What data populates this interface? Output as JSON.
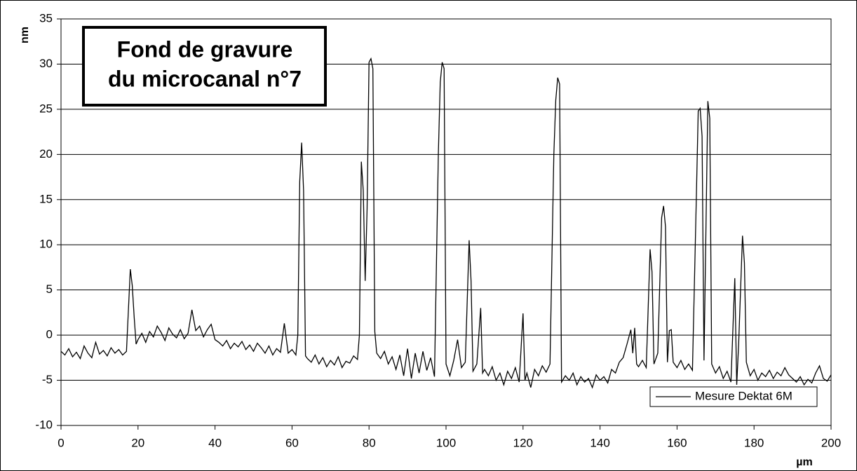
{
  "chart_data": {
    "type": "line",
    "title_lines": [
      "Fond de gravure",
      "du microcanal n°7"
    ],
    "x_label": "µm",
    "y_label": "nm",
    "xlim": [
      0,
      200
    ],
    "xticks": [
      0,
      20,
      40,
      60,
      80,
      100,
      120,
      140,
      160,
      180,
      200
    ],
    "ylim": [
      -10,
      35
    ],
    "yticks": [
      -10,
      -5,
      0,
      5,
      10,
      15,
      20,
      25,
      30,
      35
    ],
    "grid": true,
    "legend": "lower right",
    "x": [
      0,
      1,
      2,
      3,
      4,
      5,
      6,
      7,
      8,
      9,
      10,
      11,
      12,
      13,
      14,
      15,
      16,
      17,
      18,
      18.5,
      19,
      19.5,
      20,
      21,
      22,
      23,
      24,
      25,
      26,
      27,
      28,
      29,
      30,
      31,
      32,
      33,
      34,
      35,
      36,
      37,
      38,
      39,
      40,
      41,
      42,
      43,
      44,
      45,
      46,
      47,
      48,
      49,
      50,
      51,
      52,
      53,
      54,
      55,
      56,
      57,
      58,
      59,
      60,
      61,
      61.5,
      62,
      62.5,
      63,
      63.5,
      64,
      65,
      66,
      67,
      68,
      69,
      70,
      71,
      72,
      73,
      74,
      75,
      76,
      77,
      77.5,
      78,
      78.5,
      79,
      79.5,
      80,
      80.5,
      81,
      81.5,
      82,
      83,
      84,
      85,
      86,
      87,
      88,
      89,
      90,
      91,
      92,
      93,
      94,
      95,
      96,
      97,
      98,
      98.5,
      99,
      99.5,
      100,
      101,
      102,
      103,
      104,
      105,
      106,
      106.5,
      107,
      108,
      109,
      109.5,
      110,
      111,
      112,
      113,
      114,
      115,
      116,
      117,
      118,
      119,
      120,
      120.5,
      121,
      122,
      123,
      124,
      125,
      126,
      127,
      128,
      128.5,
      129,
      129.5,
      130,
      131,
      132,
      133,
      134,
      135,
      136,
      137,
      138,
      139,
      140,
      141,
      142,
      143,
      144,
      145,
      146,
      147,
      148,
      148.5,
      149,
      149.5,
      150,
      151,
      152,
      153,
      153.5,
      154,
      155,
      156,
      156.5,
      157,
      157.5,
      158,
      158.5,
      159,
      160,
      161,
      162,
      163,
      164,
      165,
      165.5,
      166,
      166.5,
      167,
      168,
      168.5,
      169,
      170,
      171,
      172,
      173,
      174,
      175,
      175.5,
      176,
      177,
      177.5,
      178,
      179,
      180,
      181,
      182,
      183,
      184,
      185,
      186,
      187,
      188,
      189,
      190,
      191,
      192,
      193,
      194,
      195,
      196,
      197,
      198,
      199,
      200
    ],
    "series": [
      {
        "name": "Mesure Dektat 6M",
        "color": "#000000",
        "values": [
          -1.8,
          -2.2,
          -1.5,
          -2.4,
          -1.9,
          -2.6,
          -1.2,
          -2.0,
          -2.5,
          -0.8,
          -2.1,
          -1.7,
          -2.3,
          -1.4,
          -2.0,
          -1.6,
          -2.2,
          -1.8,
          7.3,
          5.5,
          2.0,
          -1.0,
          -0.5,
          0.2,
          -0.8,
          0.4,
          -0.2,
          1.0,
          0.3,
          -0.6,
          0.8,
          0.1,
          -0.3,
          0.6,
          -0.4,
          0.2,
          2.8,
          0.5,
          1.0,
          -0.2,
          0.6,
          1.2,
          -0.5,
          -0.8,
          -1.2,
          -0.6,
          -1.5,
          -0.9,
          -1.3,
          -0.7,
          -1.6,
          -1.1,
          -1.8,
          -0.9,
          -1.4,
          -2.0,
          -1.2,
          -2.2,
          -1.5,
          -1.9,
          1.3,
          -2.0,
          -1.6,
          -2.2,
          0,
          17,
          21.3,
          16,
          -2.3,
          -2.6,
          -3.0,
          -2.2,
          -3.2,
          -2.5,
          -3.5,
          -2.8,
          -3.3,
          -2.4,
          -3.6,
          -2.9,
          -3.1,
          -2.3,
          -2.7,
          0,
          19.2,
          16,
          6,
          14,
          30.2,
          30.6,
          29.5,
          0.4,
          -2.0,
          -2.6,
          -1.8,
          -3.2,
          -2.4,
          -3.8,
          -2.2,
          -4.5,
          -1.5,
          -4.8,
          -2.0,
          -4.2,
          -1.8,
          -3.9,
          -2.5,
          -4.6,
          20,
          28,
          30.2,
          29.5,
          -3.2,
          -4.5,
          -2.8,
          -0.5,
          -3.6,
          -3.0,
          10.5,
          6,
          -4.0,
          -3.2,
          3.0,
          -4.2,
          -3.8,
          -4.5,
          -3.5,
          -5.0,
          -4.2,
          -5.5,
          -4.0,
          -4.8,
          -3.6,
          -5.2,
          2.4,
          -5.0,
          -4.2,
          -5.8,
          -3.8,
          -4.5,
          -3.4,
          -4.1,
          -3.2,
          20,
          26,
          28.5,
          27.8,
          -5.2,
          -4.5,
          -5.0,
          -4.2,
          -5.5,
          -4.6,
          -5.2,
          -4.8,
          -5.8,
          -4.4,
          -5.0,
          -4.6,
          -5.3,
          -3.8,
          -4.2,
          -3.0,
          -2.5,
          -1.0,
          0.6,
          -2,
          0.8,
          -3.2,
          -3.5,
          -2.8,
          -3.6,
          9.5,
          7.0,
          -3.2,
          -2.0,
          13,
          14.3,
          12,
          -3.0,
          0.5,
          0.6,
          -3.0,
          -3.6,
          -2.8,
          -3.8,
          -3.2,
          -3.9,
          15,
          24.8,
          25.1,
          22,
          -2.8,
          25.9,
          24,
          -3.2,
          -4.2,
          -3.5,
          -4.8,
          -4.0,
          -5.2,
          6.3,
          -5.5,
          -1.0,
          11.0,
          8,
          -3.0,
          -4.5,
          -3.8,
          -5.0,
          -4.2,
          -4.6,
          -3.9,
          -4.8,
          -4.1,
          -4.5,
          -3.6,
          -4.4,
          -4.8,
          -5.2,
          -4.6,
          -5.5,
          -4.9,
          -5.3,
          -4.2,
          -3.4,
          -4.8,
          -5.1,
          -4.4
        ]
      }
    ]
  }
}
